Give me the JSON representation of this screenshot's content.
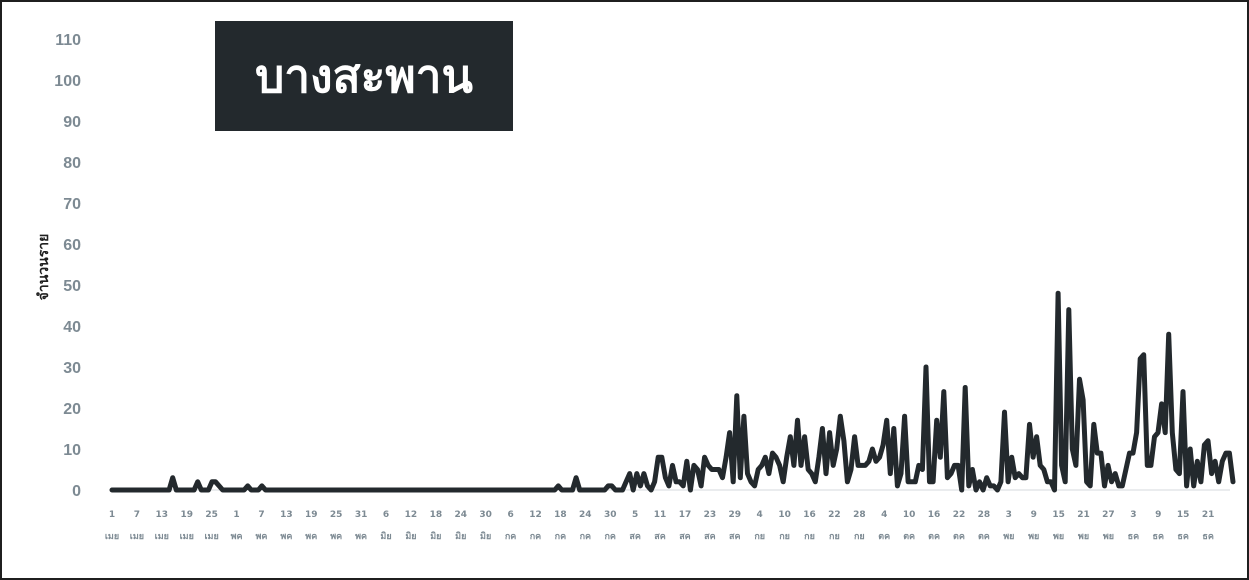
{
  "chart_data": {
    "type": "line",
    "title": "บางสะพาน",
    "ylabel": "จำนวนราย",
    "xlabel": "",
    "ylim": [
      0,
      110
    ],
    "yticks": [
      0,
      10,
      20,
      30,
      40,
      50,
      60,
      70,
      80,
      90,
      100,
      110
    ],
    "grid": false,
    "line_color": "#23292d",
    "x_tick_labels": [
      [
        "1",
        "เมย"
      ],
      [
        "7",
        "เมย"
      ],
      [
        "13",
        "เมย"
      ],
      [
        "19",
        "เมย"
      ],
      [
        "25",
        "เมย"
      ],
      [
        "1",
        "พค"
      ],
      [
        "7",
        "พค"
      ],
      [
        "13",
        "พค"
      ],
      [
        "19",
        "พค"
      ],
      [
        "25",
        "พค"
      ],
      [
        "31",
        "พค"
      ],
      [
        "6",
        "มิย"
      ],
      [
        "12",
        "มิย"
      ],
      [
        "18",
        "มิย"
      ],
      [
        "24",
        "มิย"
      ],
      [
        "30",
        "มิย"
      ],
      [
        "6",
        "กค"
      ],
      [
        "12",
        "กค"
      ],
      [
        "18",
        "กค"
      ],
      [
        "24",
        "กค"
      ],
      [
        "30",
        "กค"
      ],
      [
        "5",
        "สค"
      ],
      [
        "11",
        "สค"
      ],
      [
        "17",
        "สค"
      ],
      [
        "23",
        "สค"
      ],
      [
        "29",
        "สค"
      ],
      [
        "4",
        "กย"
      ],
      [
        "10",
        "กย"
      ],
      [
        "16",
        "กย"
      ],
      [
        "22",
        "กย"
      ],
      [
        "28",
        "กย"
      ],
      [
        "4",
        "ตค"
      ],
      [
        "10",
        "ตค"
      ],
      [
        "16",
        "ตค"
      ],
      [
        "22",
        "ตค"
      ],
      [
        "28",
        "ตค"
      ],
      [
        "3",
        "พย"
      ],
      [
        "9",
        "พย"
      ],
      [
        "15",
        "พย"
      ],
      [
        "21",
        "พย"
      ],
      [
        "27",
        "พย"
      ],
      [
        "3",
        "ธค"
      ],
      [
        "9",
        "ธค"
      ],
      [
        "15",
        "ธค"
      ],
      [
        "21",
        "ธค"
      ]
    ],
    "series": [
      {
        "values": [
          0,
          0,
          0,
          0,
          0,
          0,
          0,
          0,
          0,
          0,
          0,
          0,
          0,
          0,
          0,
          0,
          0,
          3,
          0,
          0,
          0,
          0,
          0,
          0,
          2,
          0,
          0,
          0,
          2,
          2,
          1,
          0,
          0,
          0,
          0,
          0,
          0,
          0,
          1,
          0,
          0,
          0,
          1,
          0,
          0,
          0,
          0,
          0,
          0,
          0,
          0,
          0,
          0,
          0,
          0,
          0,
          0,
          0,
          0,
          0,
          0,
          0,
          0,
          0,
          0,
          0,
          0,
          0,
          0,
          0,
          0,
          0,
          0,
          0,
          0,
          0,
          0,
          0,
          0,
          0,
          0,
          0,
          0,
          0,
          0,
          0,
          0,
          0,
          0,
          0,
          0,
          0,
          0,
          0,
          0,
          0,
          0,
          0,
          0,
          0,
          0,
          0,
          0,
          0,
          0,
          0,
          0,
          0,
          0,
          0,
          0,
          0,
          0,
          0,
          0,
          0,
          0,
          0,
          0,
          0,
          0,
          0,
          0,
          0,
          0,
          1,
          0,
          0,
          0,
          0,
          3,
          0,
          0,
          0,
          0,
          0,
          0,
          0,
          0,
          1,
          1,
          0,
          0,
          0,
          2,
          4,
          0,
          4,
          1,
          4,
          1,
          0,
          2,
          8,
          8,
          3,
          1,
          6,
          2,
          2,
          1,
          7,
          0,
          6,
          5,
          1,
          8,
          6,
          5,
          5,
          5,
          3,
          8,
          14,
          2,
          23,
          3,
          18,
          4,
          2,
          1,
          5,
          6,
          8,
          4,
          9,
          8,
          6,
          2,
          8,
          13,
          6,
          17,
          6,
          13,
          5,
          4,
          2,
          8,
          15,
          4,
          14,
          6,
          10,
          18,
          12,
          2,
          5,
          13,
          6,
          6,
          6,
          7,
          10,
          7,
          8,
          11,
          17,
          4,
          15,
          1,
          4,
          18,
          2,
          2,
          2,
          6,
          5,
          30,
          2,
          2,
          17,
          8,
          24,
          3,
          4,
          6,
          6,
          0,
          25,
          1,
          5,
          0,
          2,
          0,
          3,
          1,
          1,
          0,
          2,
          19,
          2,
          8,
          3,
          4,
          3,
          3,
          16,
          8,
          13,
          6,
          5,
          2,
          2,
          0,
          48,
          6,
          2,
          44,
          10,
          6,
          27,
          22,
          2,
          1,
          16,
          9,
          9,
          1,
          6,
          2,
          4,
          1,
          1,
          5,
          9,
          9,
          14,
          32,
          33,
          6,
          6,
          13,
          14,
          21,
          14,
          38,
          14,
          5,
          4,
          24,
          1,
          10,
          1,
          7,
          2,
          11,
          12,
          4,
          7,
          2,
          7,
          9,
          9,
          2
        ]
      }
    ]
  }
}
